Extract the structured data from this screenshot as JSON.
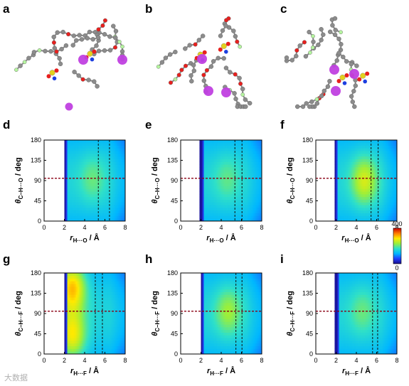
{
  "figure": {
    "watermark": "大数据",
    "panel_letters": [
      "a",
      "b",
      "c",
      "d",
      "e",
      "f",
      "g",
      "h",
      "i"
    ],
    "colorbar": {
      "max_label": "400",
      "min_label": "0",
      "range": [
        0,
        400
      ],
      "colors": [
        "#1a0d8c",
        "#2040ff",
        "#00b7ff",
        "#2fe0c8",
        "#9bef3b",
        "#ffe900",
        "#ff7a00",
        "#c80000"
      ]
    },
    "atom_colors": {
      "carbon": "#8c8c8c",
      "oxygen": "#e8201e",
      "sulfur": "#e3d21d",
      "nitrogen": "#1d3fe0",
      "fluorine": "#b6f5a0",
      "metal": "#c040e0"
    }
  },
  "chart_data": [
    {
      "panel": "d",
      "type": "heatmap",
      "xlabel": {
        "main": "r",
        "sub": "H···O",
        "unit": " / Å"
      },
      "ylabel": {
        "main": "θ",
        "sub": "C–H···O",
        "unit": " / deg"
      },
      "xlim": [
        0,
        8
      ],
      "ylim": [
        0,
        180
      ],
      "xticks": [
        "0",
        "2",
        "4",
        "6",
        "8"
      ],
      "yticks": [
        "0",
        "45",
        "90",
        "135",
        "180"
      ],
      "onset": 2.0,
      "peaks": [
        {
          "x": 4.8,
          "y": 95,
          "value": 170
        }
      ],
      "hline": 95,
      "vlines": [
        5.35,
        6.45
      ]
    },
    {
      "panel": "e",
      "type": "heatmap",
      "xlabel": {
        "main": "r",
        "sub": "H···O",
        "unit": " / Å"
      },
      "ylabel": {
        "main": "θ",
        "sub": "C–H···O",
        "unit": " / deg"
      },
      "xlim": [
        0,
        8
      ],
      "ylim": [
        0,
        180
      ],
      "xticks": [
        "0",
        "2",
        "4",
        "6",
        "8"
      ],
      "yticks": [
        "0",
        "45",
        "90",
        "135",
        "180"
      ],
      "onset": 1.9,
      "peaks": [
        {
          "x": 4.6,
          "y": 95,
          "value": 165
        }
      ],
      "hline": 95,
      "vlines": [
        5.35,
        6.05
      ]
    },
    {
      "panel": "f",
      "type": "heatmap",
      "xlabel": {
        "main": "r",
        "sub": "H···O",
        "unit": " / Å"
      },
      "ylabel": {
        "main": "θ",
        "sub": "C–H···O",
        "unit": " / deg"
      },
      "xlim": [
        0,
        8
      ],
      "ylim": [
        0,
        180
      ],
      "xticks": [
        "0",
        "2",
        "4",
        "6",
        "8"
      ],
      "yticks": [
        "0",
        "45",
        "90",
        "135",
        "180"
      ],
      "onset": 1.85,
      "peaks": [
        {
          "x": 4.8,
          "y": 90,
          "value": 230
        }
      ],
      "hline": 95,
      "vlines": [
        5.45,
        6.15
      ]
    },
    {
      "panel": "g",
      "type": "heatmap",
      "xlabel": {
        "main": "r",
        "sub": "H···F",
        "unit": " / Å"
      },
      "ylabel": {
        "main": "θ",
        "sub": "C–H···F",
        "unit": " / deg"
      },
      "xlim": [
        0,
        8
      ],
      "ylim": [
        0,
        180
      ],
      "xticks": [
        "0",
        "2",
        "4",
        "6",
        "8"
      ],
      "yticks": [
        "0",
        "45",
        "90",
        "135",
        "180"
      ],
      "onset": 2.0,
      "peaks": [
        {
          "x": 2.8,
          "y": 150,
          "value": 290
        },
        {
          "x": 2.8,
          "y": 40,
          "value": 260
        }
      ],
      "hline": 95,
      "vlines": [
        5.05,
        5.75
      ]
    },
    {
      "panel": "h",
      "type": "heatmap",
      "xlabel": {
        "main": "r",
        "sub": "H···F",
        "unit": " / Å"
      },
      "ylabel": {
        "main": "θ",
        "sub": "C–H···F",
        "unit": " / deg"
      },
      "xlim": [
        0,
        8
      ],
      "ylim": [
        0,
        180
      ],
      "xticks": [
        "0",
        "2",
        "4",
        "6",
        "8"
      ],
      "yticks": [
        "0",
        "45",
        "90",
        "135",
        "180"
      ],
      "onset": 1.95,
      "peaks": [
        {
          "x": 4.7,
          "y": 95,
          "value": 200
        }
      ],
      "hline": 95,
      "vlines": [
        5.45,
        6.05
      ]
    },
    {
      "panel": "i",
      "type": "heatmap",
      "xlabel": {
        "main": "r",
        "sub": "H···F",
        "unit": " / Å"
      },
      "ylabel": {
        "main": "θ",
        "sub": "C–H···F",
        "unit": " / deg"
      },
      "xlim": [
        0,
        8
      ],
      "ylim": [
        0,
        180
      ],
      "xticks": [
        "0",
        "2",
        "4",
        "6",
        "8"
      ],
      "yticks": [
        "0",
        "45",
        "90",
        "135",
        "180"
      ],
      "onset": 1.9,
      "peaks": [
        {
          "x": 4.6,
          "y": 95,
          "value": 170
        }
      ],
      "hline": 95,
      "vlines": [
        5.6,
        6.1
      ]
    }
  ]
}
